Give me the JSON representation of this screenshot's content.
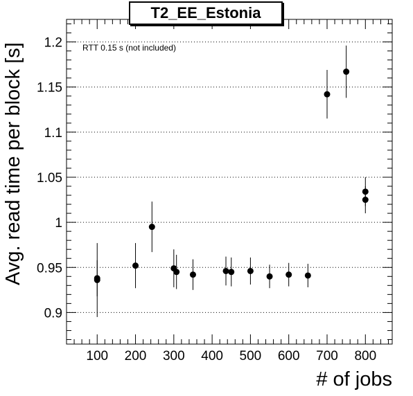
{
  "chart_data": {
    "type": "scatter",
    "title": "T2_EE_Estonia",
    "annotation": "RTT 0.15 s (not included)",
    "xlabel": "# of jobs",
    "ylabel": "Avg. read time per block [s]",
    "xlim": [
      20,
      870
    ],
    "ylim": [
      0.865,
      1.225
    ],
    "x_ticks": [
      100,
      200,
      300,
      400,
      500,
      600,
      700,
      800
    ],
    "y_ticks": [
      0.9,
      0.95,
      1,
      1.05,
      1.1,
      1.15,
      1.2
    ],
    "y_tick_labels": [
      "0.9",
      "0.95",
      "1",
      "1.05",
      "1.1",
      "1.15",
      "1.2"
    ],
    "grid": "horizontal dotted",
    "points": [
      {
        "x": 100,
        "y": 0.936,
        "err": 0.041
      },
      {
        "x": 100,
        "y": 0.938,
        "err": 0.02
      },
      {
        "x": 200,
        "y": 0.952,
        "err": 0.025
      },
      {
        "x": 243,
        "y": 0.995,
        "err": 0.028
      },
      {
        "x": 300,
        "y": 0.949,
        "err": 0.021
      },
      {
        "x": 307,
        "y": 0.945,
        "err": 0.019
      },
      {
        "x": 350,
        "y": 0.942,
        "err": 0.017
      },
      {
        "x": 436,
        "y": 0.946,
        "err": 0.016
      },
      {
        "x": 450,
        "y": 0.945,
        "err": 0.016
      },
      {
        "x": 500,
        "y": 0.946,
        "err": 0.015
      },
      {
        "x": 550,
        "y": 0.94,
        "err": 0.013
      },
      {
        "x": 600,
        "y": 0.942,
        "err": 0.013
      },
      {
        "x": 650,
        "y": 0.941,
        "err": 0.013
      },
      {
        "x": 700,
        "y": 1.142,
        "err": 0.027
      },
      {
        "x": 750,
        "y": 1.167,
        "err": 0.029
      },
      {
        "x": 800,
        "y": 1.034,
        "err": 0.016
      },
      {
        "x": 800,
        "y": 1.025,
        "err": 0.015
      }
    ]
  }
}
